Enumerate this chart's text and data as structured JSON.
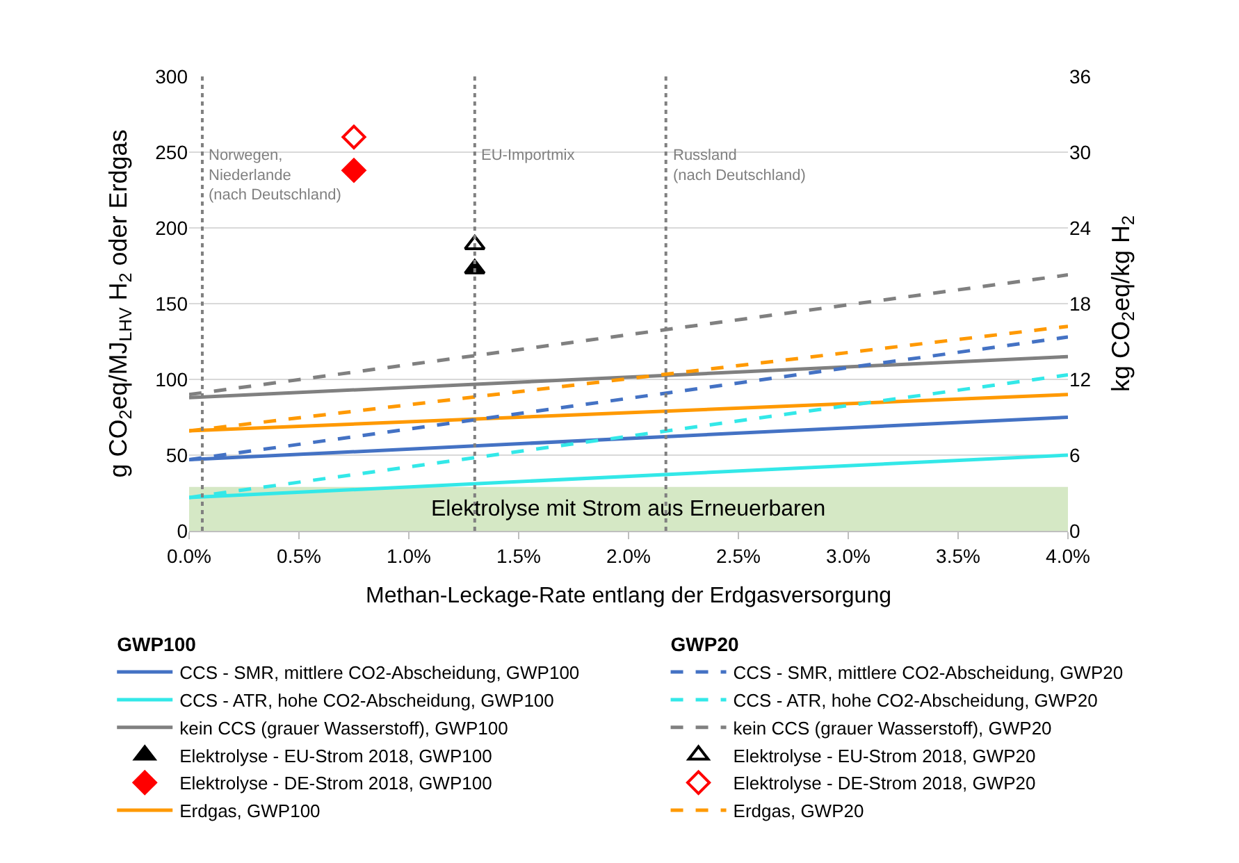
{
  "chart_data": {
    "type": "line",
    "xlabel": "Methan-Leckage-Rate entlang der Erdgasversorgung",
    "ylabel": "g CO$_{2}$eq/MJ$_{LHV}$ H$_{2}$ oder Erdgas",
    "y2label": "kg CO$_{2}$eq/kg H$_{2}$",
    "legend_title": [
      "GWP100",
      "GWP20"
    ],
    "legend": "bottom",
    "grid": "y",
    "xlim": [
      0,
      4
    ],
    "xticks": [
      {
        "value": 0,
        "label": "0.0%"
      },
      {
        "value": 0.5,
        "label": "0.5%"
      },
      {
        "value": 1,
        "label": "1.0%"
      },
      {
        "value": 1.5,
        "label": "1.5%"
      },
      {
        "value": 2,
        "label": "2.0%"
      },
      {
        "value": 2.5,
        "label": "2.5%"
      },
      {
        "value": 3,
        "label": "3.0%"
      },
      {
        "value": 3.5,
        "label": "3.5%"
      },
      {
        "value": 4,
        "label": "4.0%"
      }
    ],
    "ylim": [
      0,
      300
    ],
    "yticks": [
      0,
      50,
      100,
      150,
      200,
      250,
      300
    ],
    "y2lim": [
      0,
      36
    ],
    "y2ticks": [
      0,
      6,
      12,
      18,
      24,
      30,
      36
    ],
    "series": [
      {
        "name": "CCS - SMR, mittlere CO2-Abscheidung, GWP100",
        "color": "#4472c4",
        "x": [
          0,
          4
        ],
        "values": [
          47,
          75
        ],
        "line_style": "solid"
      },
      {
        "name": "CCS - ATR, hohe CO2-Abscheidung, GWP100",
        "color": "#33e8e8",
        "x": [
          0,
          4
        ],
        "values": [
          22,
          50
        ],
        "line_style": "solid"
      },
      {
        "name": "kein CCS (grauer Wasserstoff), GWP100",
        "color": "#808080",
        "x": [
          0,
          4
        ],
        "values": [
          88,
          115
        ],
        "line_style": "solid"
      },
      {
        "type": "scatter",
        "name": "Elektrolyse - EU-Strom 2018, GWP100",
        "color": "#000000",
        "x": [
          1.3
        ],
        "values": [
          173
        ],
        "marker": "triangle"
      },
      {
        "type": "scatter",
        "name": "Elektrolyse - DE-Strom 2018, GWP100",
        "color": "#ff0000",
        "x": [
          0.75
        ],
        "values": [
          238
        ],
        "marker": "diamond"
      },
      {
        "name": "Erdgas, GWP100",
        "color": "#ff9900",
        "x": [
          0,
          4
        ],
        "values": [
          66,
          90
        ],
        "line_style": "solid"
      },
      {
        "name": "CCS - SMR, mittlere CO2-Abscheidung, GWP20",
        "color": "#4472c4",
        "x": [
          0,
          4
        ],
        "values": [
          47,
          128
        ],
        "line_style": "dashed"
      },
      {
        "name": "CCS - ATR, hohe CO2-Abscheidung, GWP20",
        "color": "#33e8e8",
        "x": [
          0,
          4
        ],
        "values": [
          22,
          103
        ],
        "line_style": "dashed"
      },
      {
        "name": "kein CCS (grauer Wasserstoff), GWP20",
        "color": "#808080",
        "x": [
          0,
          4
        ],
        "values": [
          90,
          169
        ],
        "line_style": "dashed"
      },
      {
        "type": "scatter",
        "name": "Elektrolyse - EU-Strom 2018, GWP20",
        "color": "#000000",
        "x": [
          1.3
        ],
        "values": [
          189
        ],
        "marker": "triangle-open"
      },
      {
        "type": "scatter",
        "name": "Elektrolyse - DE-Strom 2018, GWP20",
        "color": "#ff0000",
        "x": [
          0.75
        ],
        "values": [
          260
        ],
        "marker": "diamond-open"
      },
      {
        "name": "Erdgas, GWP20",
        "color": "#ff9900",
        "x": [
          0,
          4
        ],
        "values": [
          66,
          135
        ],
        "line_style": "dashed"
      }
    ],
    "ref_lines": [
      {
        "axis": "x",
        "value": 0.06,
        "label": "Norwegen,\nNiederlande\n(nach Deutschland)",
        "color": "#808080",
        "line_style": "dotted"
      },
      {
        "axis": "x",
        "value": 1.3,
        "label": "EU-Importmix",
        "color": "#808080",
        "line_style": "dotted"
      },
      {
        "axis": "x",
        "value": 2.17,
        "label": "Russland\n(nach Deutschland)",
        "color": "#808080",
        "line_style": "dotted"
      }
    ],
    "bands": [
      {
        "axis": "y",
        "from": 0,
        "to": 29,
        "label": "Elektrolyse mit Strom aus Erneuerbaren",
        "color": "#d5e8c5"
      }
    ]
  }
}
